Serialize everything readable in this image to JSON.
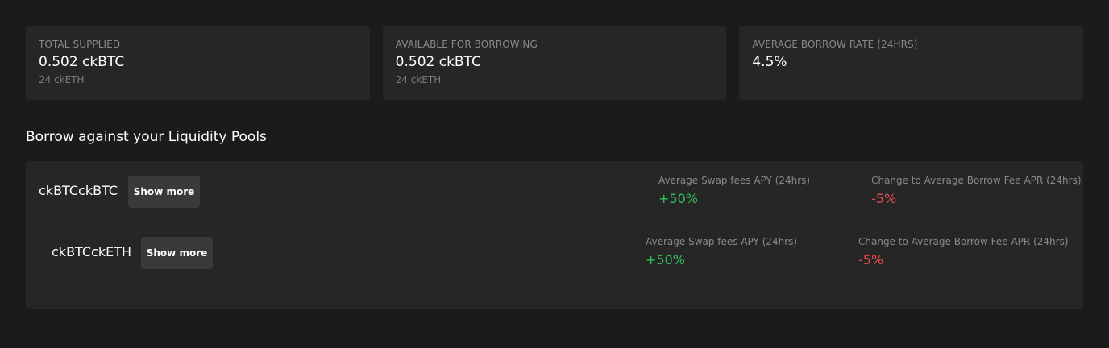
{
  "stats": [
    {
      "label": "TOTAL SUPPLIED",
      "value": "0.502 ckBTC",
      "sub": "24 ckETH"
    },
    {
      "label": "AVAILABLE FOR BORROWING",
      "value": "0.502 ckBTC",
      "sub": "24 ckETH"
    },
    {
      "label": "AVERAGE BORROW RATE (24HRS)",
      "value": "4.5%",
      "sub": ""
    }
  ],
  "section": {
    "title": "Borrow against your Liquidity Pools"
  },
  "pools": [
    {
      "name": "ckBTCckBTC",
      "button_label": "Show more",
      "swap_label": "Average Swap fees APY (24hrs)",
      "swap_value": "+50%",
      "borrow_label": "Change to Average Borrow Fee APR (24hrs)",
      "borrow_value": "-5%"
    },
    {
      "name": "ckBTCckETH",
      "button_label": "Show more",
      "swap_label": "Average Swap fees APY (24hrs)",
      "swap_value": "+50%",
      "borrow_label": "Change to Average Borrow Fee APR (24hrs)",
      "borrow_value": "-5%"
    }
  ],
  "colors": {
    "background": "#1b1b1b",
    "card": "#262626",
    "positive": "#2fc35b",
    "negative": "#e5484d"
  }
}
